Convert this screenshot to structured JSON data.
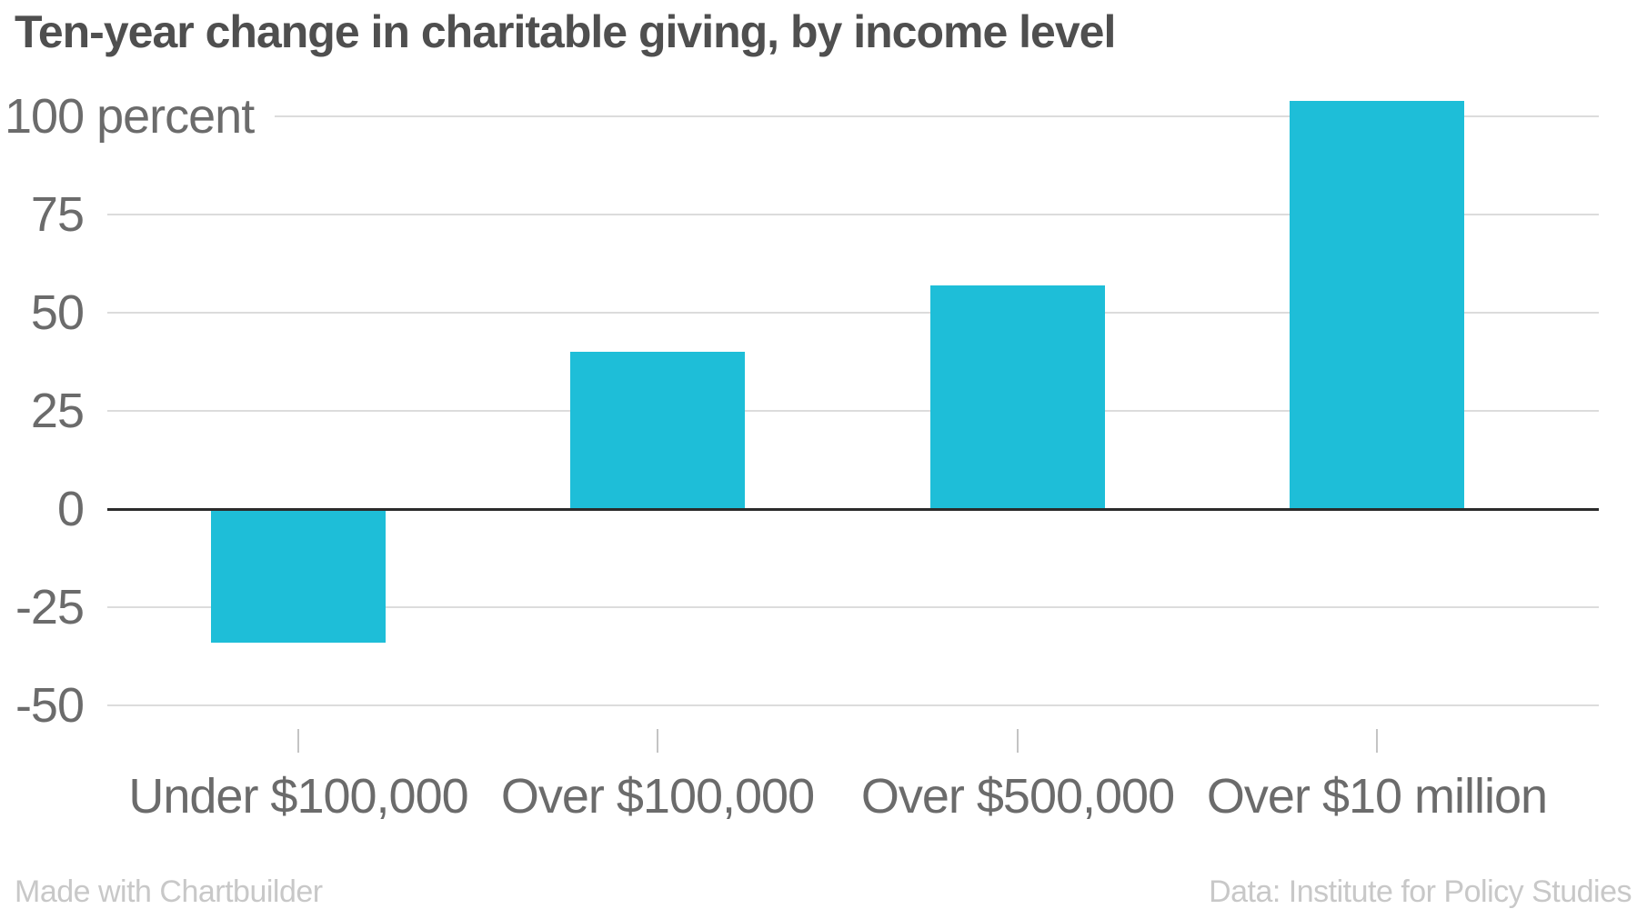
{
  "footer": {
    "left": "Made with Chartbuilder",
    "right": "Data: Institute for Policy Studies"
  },
  "colors": {
    "bar": "#1ebed8",
    "title_text": "#4f4f4f",
    "axis_text": "#6b6b6b",
    "gridline": "#dcdcdc",
    "zero_line": "#2b2b2b",
    "footer_text": "#c8c8c8"
  },
  "chart_data": {
    "type": "bar",
    "title": "Ten-year change in charitable giving, by income level",
    "categories": [
      "Under $100,000",
      "Over $100,000",
      "Over $500,000",
      "Over $10 million"
    ],
    "values": [
      -34,
      40,
      57,
      104
    ],
    "series_name": "Ten-year change in charitable giving",
    "unit": "percent",
    "y_tick_labels": [
      "100 percent",
      "75",
      "50",
      "25",
      "0",
      "-25",
      "-50"
    ],
    "y_tick_values": [
      100,
      75,
      50,
      25,
      0,
      -25,
      -50
    ],
    "ylim": [
      -50,
      110
    ],
    "xlabel": "",
    "ylabel": "percent",
    "grid": true,
    "legend_position": "none",
    "bar_color": "#1ebed8"
  }
}
